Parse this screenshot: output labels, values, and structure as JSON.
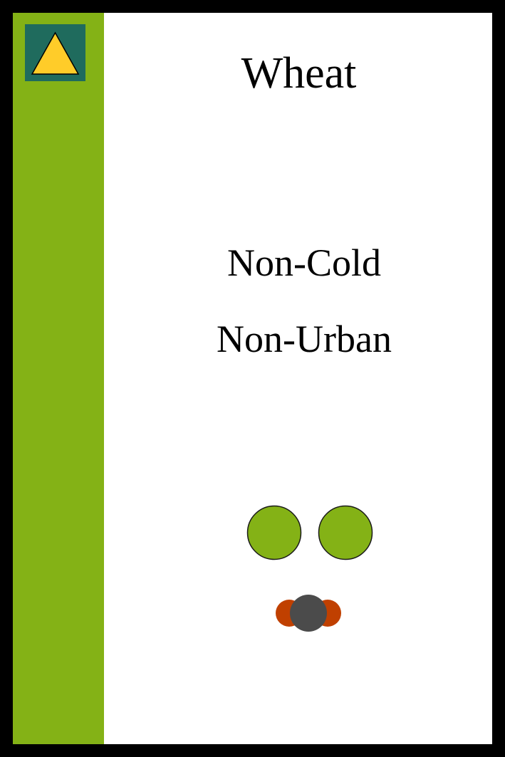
{
  "card": {
    "title": "Wheat",
    "requirements": [
      "Non-Cold",
      "Non-Urban"
    ],
    "colors": {
      "strip": "#84b216",
      "badge_bg": "#1f6b5d",
      "badge_triangle": "#ffcc29",
      "production_token": "#84b216",
      "cost_side": "#c04000",
      "cost_center": "#4b4b4b"
    },
    "icons": {
      "badge": "triangle-icon",
      "production": [
        "green-circle-icon",
        "green-circle-icon"
      ],
      "cost": "gray-token-icon"
    }
  }
}
